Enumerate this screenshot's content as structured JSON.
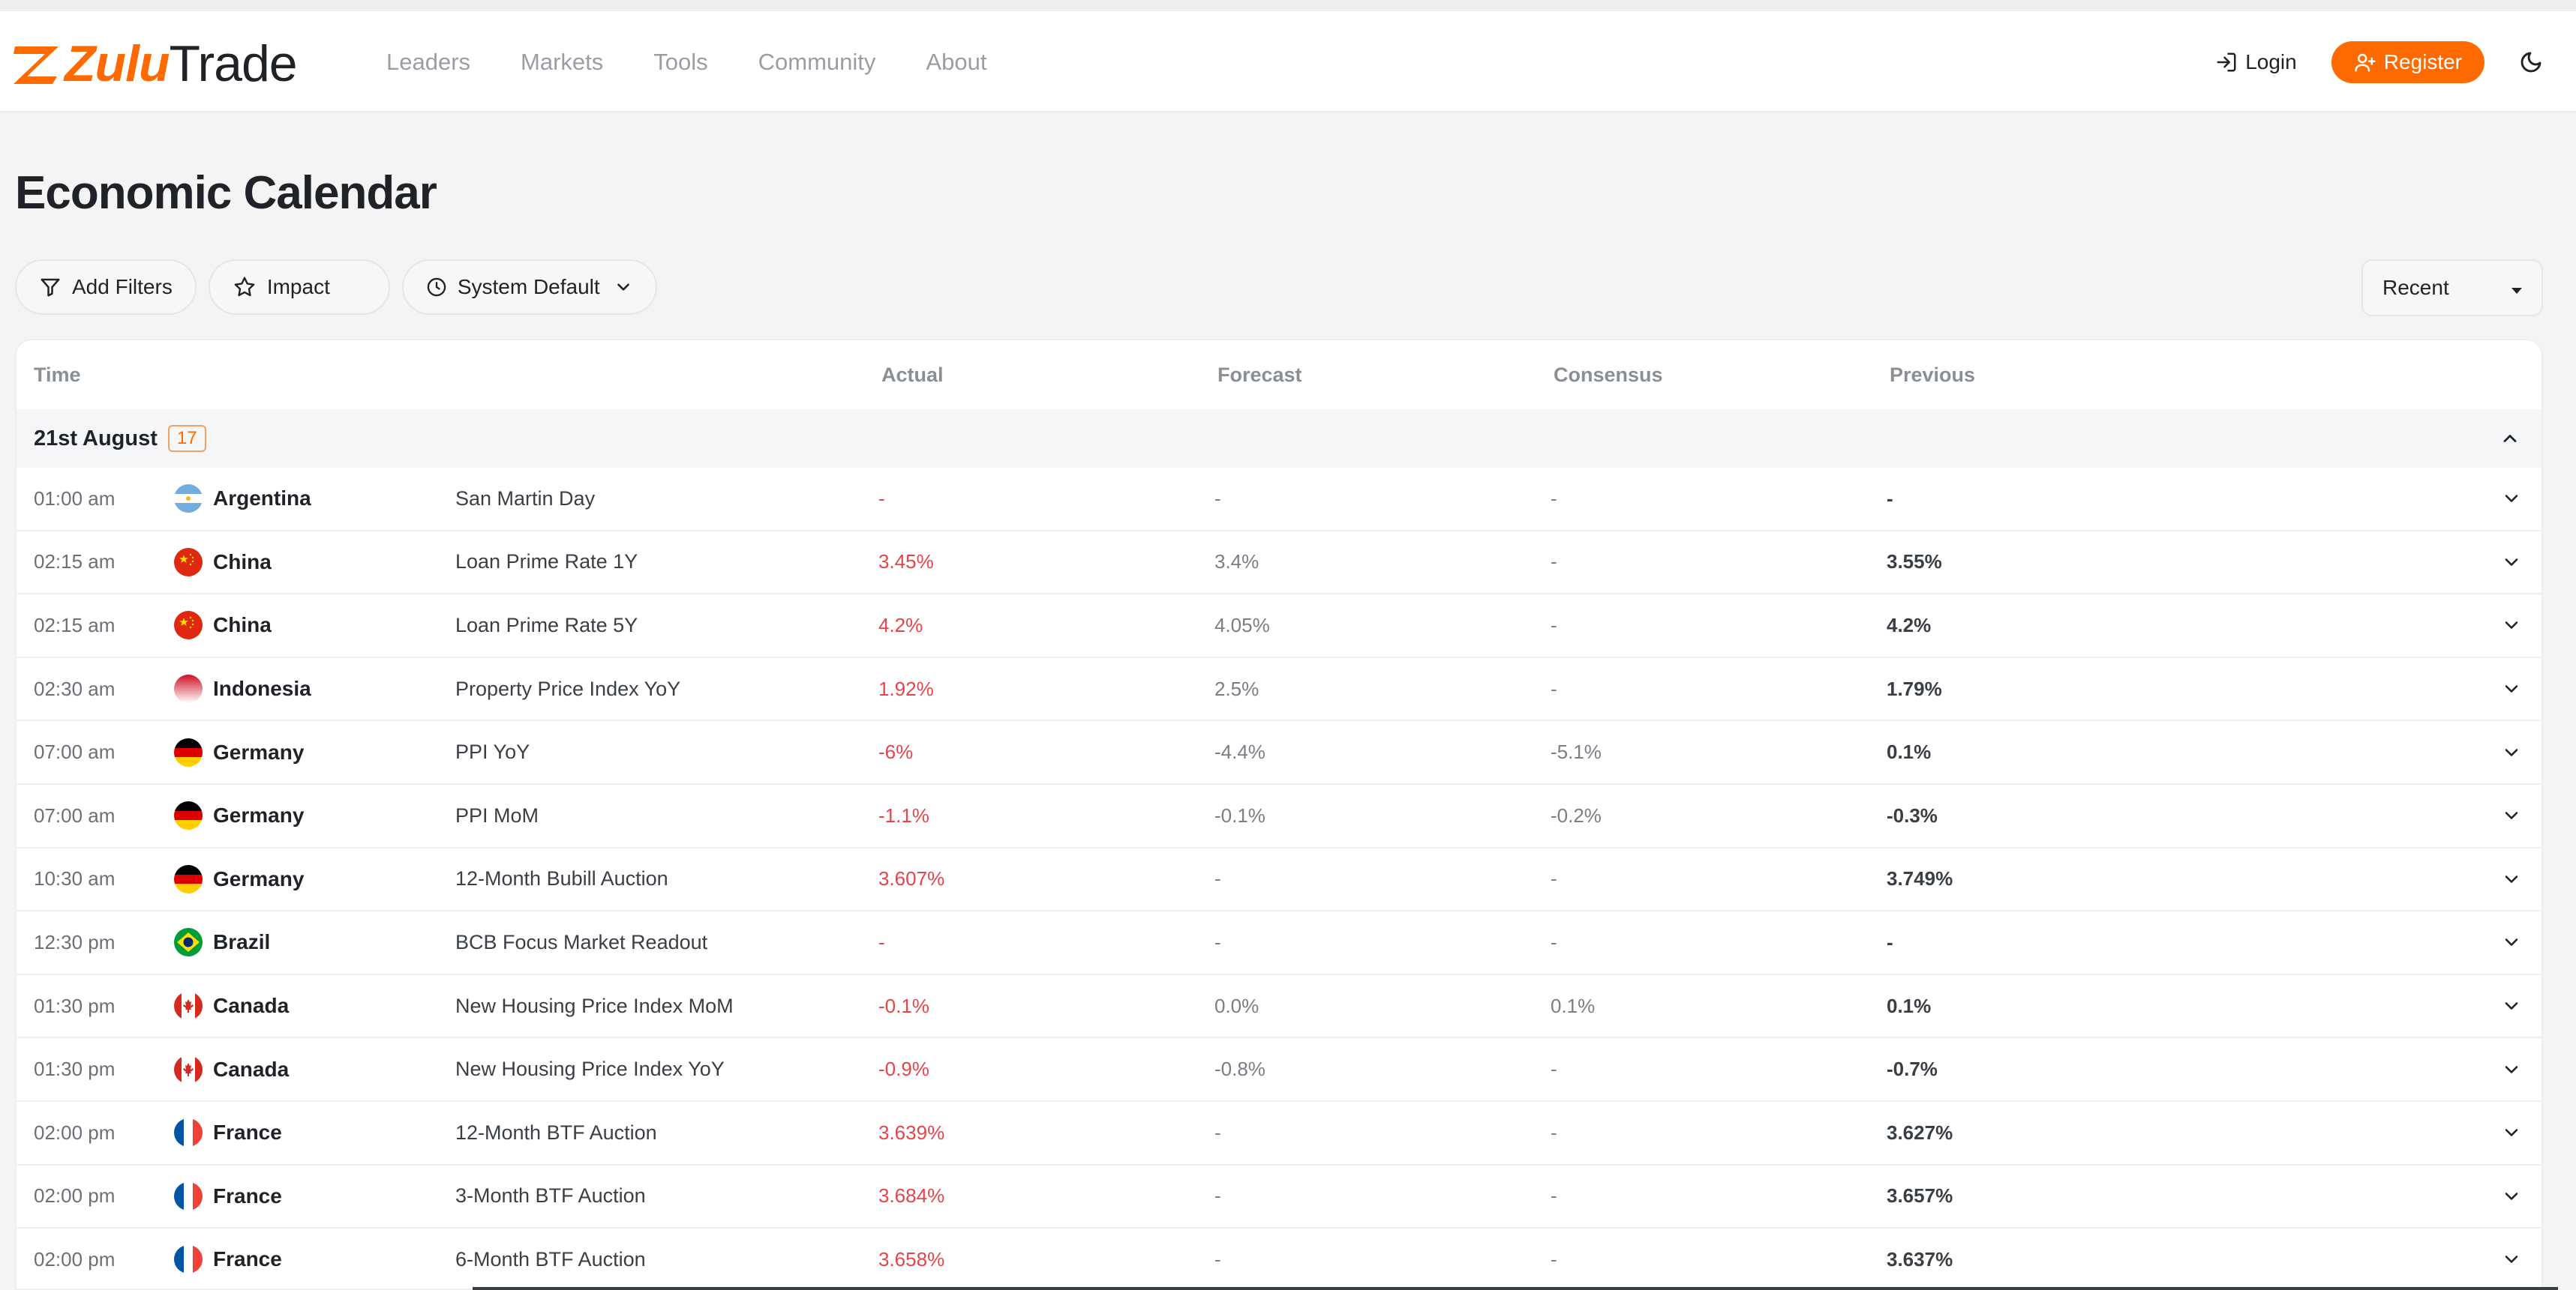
{
  "brand": {
    "zulu": "Zulu",
    "trade": "Trade",
    "accent": "#ff6a00"
  },
  "nav": {
    "items": [
      {
        "label": "Leaders"
      },
      {
        "label": "Markets"
      },
      {
        "label": "Tools"
      },
      {
        "label": "Community"
      },
      {
        "label": "About"
      }
    ]
  },
  "header": {
    "login_label": "Login",
    "register_label": "Register",
    "theme_icon": "moon-icon"
  },
  "page": {
    "title": "Economic Calendar"
  },
  "filters": {
    "add_filters_label": "Add Filters",
    "impact_label": "Impact",
    "timezone_label": "System Default"
  },
  "sort": {
    "selected": "Recent"
  },
  "table": {
    "columns": {
      "time": "Time",
      "actual": "Actual",
      "forecast": "Forecast",
      "consensus": "Consensus",
      "previous": "Previous"
    },
    "group": {
      "date": "21st August",
      "count": "17"
    },
    "rows": [
      {
        "time": "01:00 am",
        "country": "Argentina",
        "flag": "argentina",
        "event": "San Martin Day",
        "actual": "-",
        "forecast": "-",
        "consensus": "-",
        "previous": "-"
      },
      {
        "time": "02:15 am",
        "country": "China",
        "flag": "china",
        "event": "Loan Prime Rate 1Y",
        "actual": "3.45%",
        "forecast": "3.4%",
        "consensus": "-",
        "previous": "3.55%"
      },
      {
        "time": "02:15 am",
        "country": "China",
        "flag": "china",
        "event": "Loan Prime Rate 5Y",
        "actual": "4.2%",
        "forecast": "4.05%",
        "consensus": "-",
        "previous": "4.2%"
      },
      {
        "time": "02:30 am",
        "country": "Indonesia",
        "flag": "indonesia",
        "event": "Property Price Index YoY",
        "actual": "1.92%",
        "forecast": "2.5%",
        "consensus": "-",
        "previous": "1.79%"
      },
      {
        "time": "07:00 am",
        "country": "Germany",
        "flag": "germany",
        "event": "PPI YoY",
        "actual": "-6%",
        "forecast": "-4.4%",
        "consensus": "-5.1%",
        "previous": "0.1%"
      },
      {
        "time": "07:00 am",
        "country": "Germany",
        "flag": "germany",
        "event": "PPI MoM",
        "actual": "-1.1%",
        "forecast": "-0.1%",
        "consensus": "-0.2%",
        "previous": "-0.3%"
      },
      {
        "time": "10:30 am",
        "country": "Germany",
        "flag": "germany",
        "event": "12-Month Bubill Auction",
        "actual": "3.607%",
        "forecast": "-",
        "consensus": "-",
        "previous": "3.749%"
      },
      {
        "time": "12:30 pm",
        "country": "Brazil",
        "flag": "brazil",
        "event": "BCB Focus Market Readout",
        "actual": "-",
        "forecast": "-",
        "consensus": "-",
        "previous": "-"
      },
      {
        "time": "01:30 pm",
        "country": "Canada",
        "flag": "canada",
        "event": "New Housing Price Index MoM",
        "actual": "-0.1%",
        "forecast": "0.0%",
        "consensus": "0.1%",
        "previous": "0.1%"
      },
      {
        "time": "01:30 pm",
        "country": "Canada",
        "flag": "canada",
        "event": "New Housing Price Index YoY",
        "actual": "-0.9%",
        "forecast": "-0.8%",
        "consensus": "-",
        "previous": "-0.7%"
      },
      {
        "time": "02:00 pm",
        "country": "France",
        "flag": "france",
        "event": "12-Month BTF Auction",
        "actual": "3.639%",
        "forecast": "-",
        "consensus": "-",
        "previous": "3.627%"
      },
      {
        "time": "02:00 pm",
        "country": "France",
        "flag": "france",
        "event": "3-Month BTF Auction",
        "actual": "3.684%",
        "forecast": "-",
        "consensus": "-",
        "previous": "3.657%"
      },
      {
        "time": "02:00 pm",
        "country": "France",
        "flag": "france",
        "event": "6-Month BTF Auction",
        "actual": "3.658%",
        "forecast": "-",
        "consensus": "-",
        "previous": "3.637%"
      }
    ]
  }
}
